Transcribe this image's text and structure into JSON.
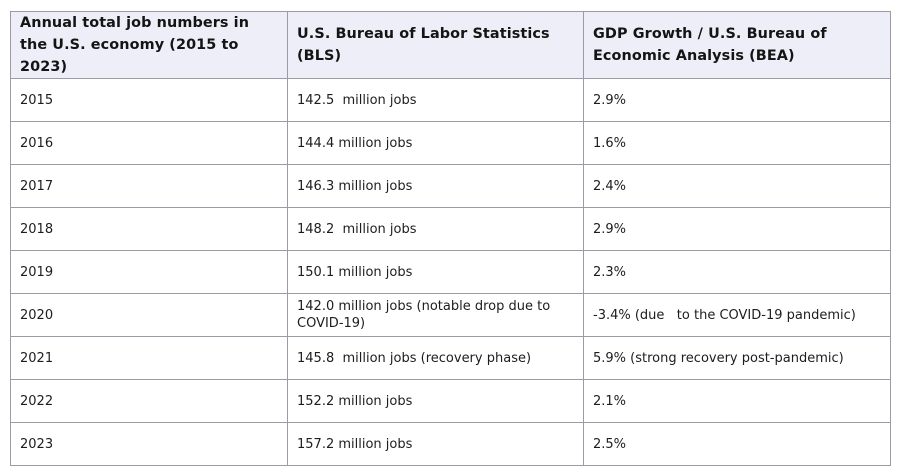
{
  "table": {
    "headers": [
      "Annual total job numbers in the U.S. economy (2015 to 2023)",
      "U.S. Bureau of Labor Statistics (BLS)",
      "GDP Growth  / U.S. Bureau of Economic Analysis (BEA)"
    ],
    "rows": [
      [
        "2015",
        "142.5  million jobs",
        "2.9%"
      ],
      [
        "2016",
        "144.4 million jobs",
        "1.6%"
      ],
      [
        "2017",
        "146.3 million jobs",
        "2.4%"
      ],
      [
        "2018",
        "148.2  million jobs",
        "2.9%"
      ],
      [
        "2019",
        "150.1 million jobs",
        "2.3%"
      ],
      [
        "2020",
        "142.0 million jobs (notable drop due to COVID-19)",
        "-3.4% (due   to the COVID-19 pandemic)"
      ],
      [
        "2021",
        "145.8  million jobs (recovery phase)",
        "5.9% (strong recovery post-pandemic)"
      ],
      [
        "2022",
        "152.2 million jobs",
        "2.1%"
      ],
      [
        "2023",
        "157.2 million jobs",
        "2.5%"
      ]
    ]
  }
}
